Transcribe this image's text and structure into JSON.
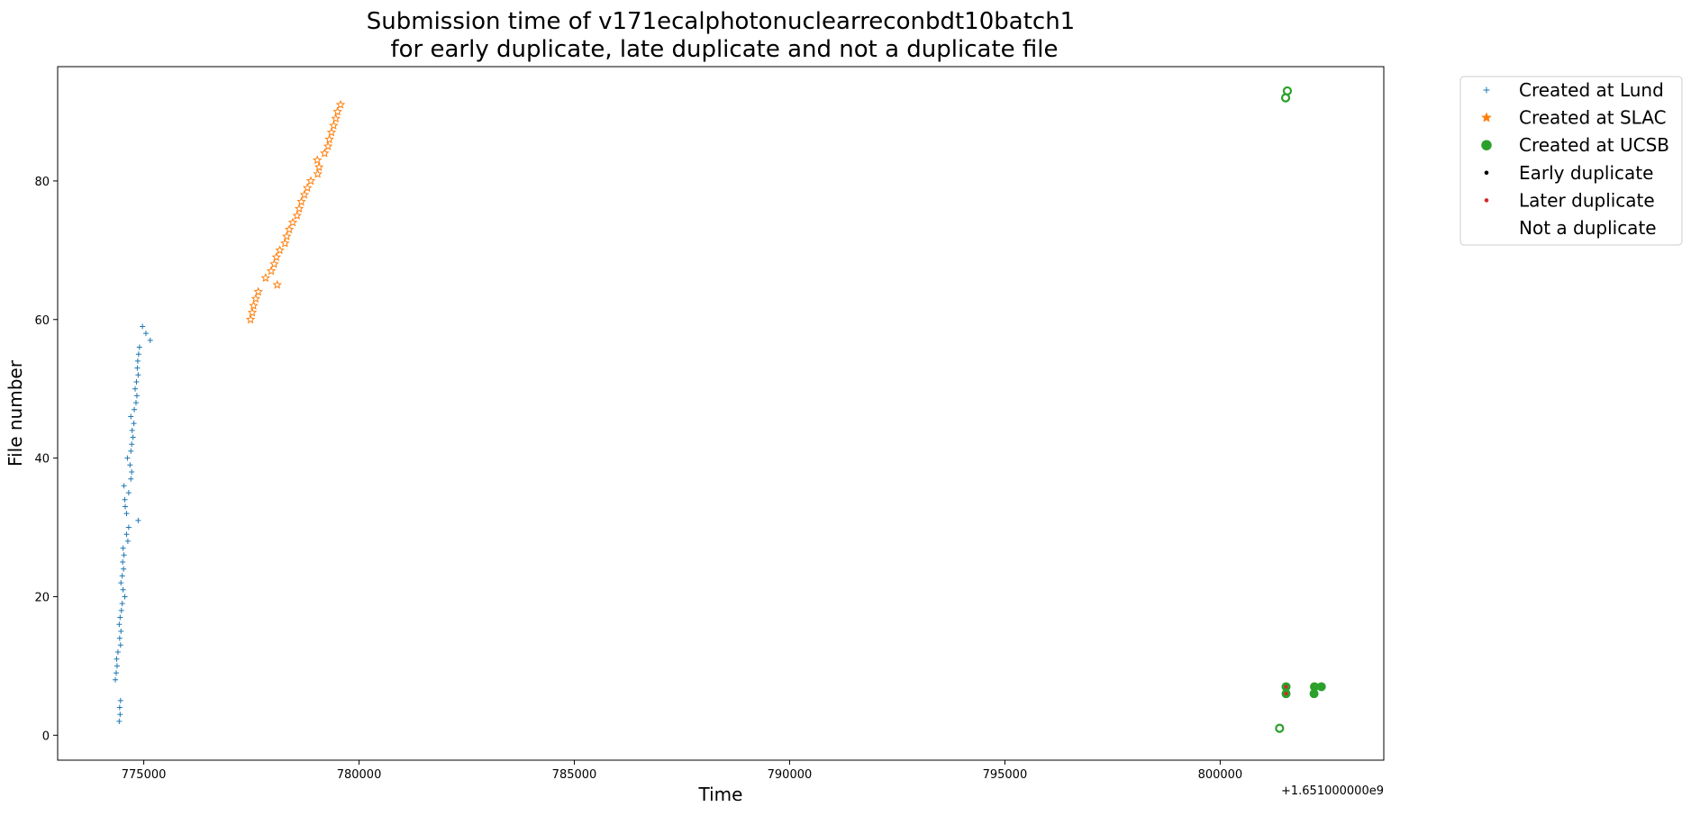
{
  "chart_data": {
    "type": "scatter",
    "title_lines": [
      "Submission time of v171ecalphotonuclearreconbdt10batch1",
      "for early duplicate, late duplicate and not a duplicate file"
    ],
    "xlabel": "Time",
    "ylabel": "File number",
    "x_offset_label": "+1.651000000e9",
    "xlim": [
      773000,
      803800
    ],
    "ylim": [
      -3.6,
      96.5
    ],
    "x_ticks": [
      775000,
      780000,
      785000,
      790000,
      795000,
      800000
    ],
    "x_tick_labels": [
      "775000",
      "780000",
      "785000",
      "790000",
      "795000",
      "800000"
    ],
    "y_ticks": [
      0,
      20,
      40,
      60,
      80
    ],
    "y_tick_labels": [
      "0",
      "20",
      "40",
      "60",
      "80"
    ],
    "grid": false,
    "legend_position": "outside-top-right",
    "legend": [
      {
        "label": "Created at Lund",
        "marker": "plus",
        "color": "#1f77b4"
      },
      {
        "label": "Created at SLAC",
        "marker": "star",
        "color": "#ff7f0e"
      },
      {
        "label": "Created at UCSB",
        "marker": "circle",
        "color": "#2ca02c"
      },
      {
        "label": "Early duplicate",
        "marker": "dot",
        "color": "#000000"
      },
      {
        "label": "Later duplicate",
        "marker": "dot",
        "color": "#d62728"
      },
      {
        "label": "Not a duplicate",
        "marker": "none",
        "color": "#ffffff"
      }
    ],
    "series": [
      {
        "name": "Created at Lund",
        "marker": "plus",
        "color": "#1f77b4",
        "points": [
          [
            774430,
            2
          ],
          [
            774450,
            3
          ],
          [
            774440,
            4
          ],
          [
            774460,
            5
          ],
          [
            774340,
            8
          ],
          [
            774360,
            9
          ],
          [
            774380,
            10
          ],
          [
            774370,
            11
          ],
          [
            774400,
            12
          ],
          [
            774460,
            13
          ],
          [
            774440,
            14
          ],
          [
            774470,
            15
          ],
          [
            774430,
            16
          ],
          [
            774450,
            17
          ],
          [
            774480,
            18
          ],
          [
            774500,
            19
          ],
          [
            774560,
            20
          ],
          [
            774520,
            21
          ],
          [
            774470,
            22
          ],
          [
            774500,
            23
          ],
          [
            774530,
            24
          ],
          [
            774510,
            25
          ],
          [
            774540,
            26
          ],
          [
            774520,
            27
          ],
          [
            774630,
            28
          ],
          [
            774600,
            29
          ],
          [
            774650,
            30
          ],
          [
            774870,
            31
          ],
          [
            774600,
            32
          ],
          [
            774570,
            33
          ],
          [
            774560,
            34
          ],
          [
            774650,
            35
          ],
          [
            774540,
            36
          ],
          [
            774700,
            37
          ],
          [
            774720,
            38
          ],
          [
            774680,
            39
          ],
          [
            774620,
            40
          ],
          [
            774700,
            41
          ],
          [
            774720,
            42
          ],
          [
            774750,
            43
          ],
          [
            774730,
            44
          ],
          [
            774770,
            45
          ],
          [
            774700,
            46
          ],
          [
            774780,
            47
          ],
          [
            774820,
            48
          ],
          [
            774840,
            49
          ],
          [
            774800,
            50
          ],
          [
            774830,
            51
          ],
          [
            774870,
            52
          ],
          [
            774850,
            53
          ],
          [
            774860,
            54
          ],
          [
            774880,
            55
          ],
          [
            774900,
            56
          ],
          [
            775150,
            57
          ],
          [
            775050,
            58
          ],
          [
            774970,
            59
          ]
        ]
      },
      {
        "name": "Created at SLAC",
        "marker": "star",
        "color": "#ff7f0e",
        "points": [
          [
            777480,
            60
          ],
          [
            777520,
            61
          ],
          [
            777550,
            62
          ],
          [
            777600,
            63
          ],
          [
            777660,
            64
          ],
          [
            778100,
            65
          ],
          [
            777830,
            66
          ],
          [
            777960,
            67
          ],
          [
            778030,
            68
          ],
          [
            778080,
            69
          ],
          [
            778160,
            70
          ],
          [
            778280,
            71
          ],
          [
            778320,
            72
          ],
          [
            778380,
            73
          ],
          [
            778460,
            74
          ],
          [
            778560,
            75
          ],
          [
            778610,
            76
          ],
          [
            778660,
            77
          ],
          [
            778730,
            78
          ],
          [
            778800,
            79
          ],
          [
            778880,
            80
          ],
          [
            779040,
            81
          ],
          [
            779070,
            82
          ],
          [
            779030,
            83
          ],
          [
            779200,
            84
          ],
          [
            779280,
            85
          ],
          [
            779310,
            86
          ],
          [
            779360,
            87
          ],
          [
            779410,
            88
          ],
          [
            779460,
            89
          ],
          [
            779500,
            90
          ],
          [
            779570,
            91
          ]
        ]
      },
      {
        "name": "Created at UCSB",
        "marker": "circle-hollow",
        "color": "#2ca02c",
        "points": [
          [
            801380,
            1
          ],
          [
            801520,
            92
          ],
          [
            801560,
            93
          ]
        ]
      },
      {
        "name": "Created at UCSB",
        "marker": "circle-filled",
        "color": "#2ca02c",
        "points": [
          [
            801530,
            6
          ],
          [
            801530,
            7
          ],
          [
            802180,
            6
          ],
          [
            802190,
            7
          ],
          [
            802350,
            7
          ]
        ]
      },
      {
        "name": "Later duplicate",
        "marker": "dot",
        "color": "#d62728",
        "points": [
          [
            801530,
            6
          ],
          [
            801530,
            7
          ]
        ]
      }
    ]
  }
}
